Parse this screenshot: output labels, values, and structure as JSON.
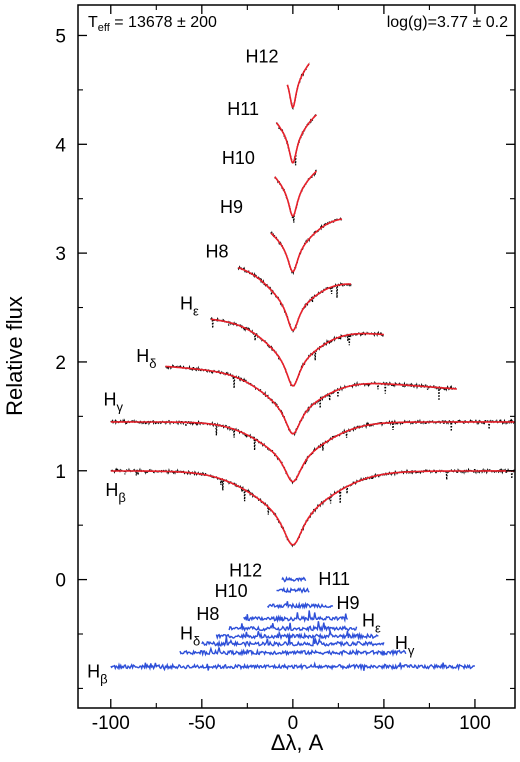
{
  "chart_data": {
    "type": "line",
    "xlabel": "Δλ, A",
    "ylabel": "Relative flux",
    "xlim": [
      -118,
      122
    ],
    "ylim": [
      -1.18,
      5.28
    ],
    "xticks": [
      -100,
      -50,
      0,
      50,
      100
    ],
    "yticks": [
      0,
      1,
      2,
      3,
      4,
      5
    ],
    "grid": false,
    "legend": "none",
    "annotations": {
      "teff": {
        "prefix": "T",
        "sub": "eff",
        "value": " = 13678  ± 200"
      },
      "logg": {
        "text": "log(g)=3.77 ± 0.2"
      }
    },
    "profiles": [
      {
        "name": "Hβ",
        "label_base": "H",
        "label_sub": "β",
        "continuum": 1.0,
        "depth": 0.68,
        "width": 7.0,
        "tilt": 0.0,
        "xmin": -100,
        "xmax": 122,
        "label_x": -103,
        "label_y": 0.77
      },
      {
        "name": "Hγ",
        "label_base": "H",
        "label_sub": "γ",
        "continuum": 1.45,
        "depth": 0.55,
        "width": 6.0,
        "tilt": 0.0,
        "xmin": -100,
        "xmax": 122,
        "label_x": -104,
        "label_y": 1.6
      },
      {
        "name": "Hδ",
        "label_base": "H",
        "label_sub": "δ",
        "continuum": 1.87,
        "depth": 0.53,
        "width": 5.3,
        "tilt": -0.0013,
        "xmin": -70,
        "xmax": 90,
        "label_x": -86,
        "label_y": 2.0
      },
      {
        "name": "Hε",
        "label_base": "H",
        "label_sub": "ε",
        "continuum": 2.33,
        "depth": 0.55,
        "width": 4.6,
        "tilt": -0.0015,
        "xmin": -45,
        "xmax": 50,
        "label_x": -62,
        "label_y": 2.48
      },
      {
        "name": "H8",
        "label_base": "H8",
        "label_sub": "",
        "continuum": 2.81,
        "depth": 0.52,
        "width": 4.0,
        "tilt": -0.0025,
        "xmin": -30,
        "xmax": 32,
        "label_x": -48,
        "label_y": 2.96
      },
      {
        "name": "H9",
        "label_base": "H9",
        "label_sub": "",
        "continuum": 3.33,
        "depth": 0.5,
        "width": 3.5,
        "tilt": 0.0,
        "xmin": -12,
        "xmax": 27,
        "label_x": -40,
        "label_y": 3.37
      },
      {
        "name": "H10",
        "label_base": "H10",
        "label_sub": "",
        "continuum": 3.86,
        "depth": 0.52,
        "width": 3.0,
        "tilt": 0.0,
        "xmin": -10,
        "xmax": 13,
        "label_x": -39,
        "label_y": 3.82
      },
      {
        "name": "H11",
        "label_base": "H11",
        "label_sub": "",
        "continuum": 4.35,
        "depth": 0.52,
        "width": 2.6,
        "tilt": 0.0,
        "xmin": -9,
        "xmax": 13,
        "label_x": -36,
        "label_y": 4.27
      },
      {
        "name": "H12",
        "label_base": "H12",
        "label_sub": "",
        "continuum": 4.86,
        "depth": 0.52,
        "width": 2.2,
        "tilt": 0.0,
        "xmin": -3,
        "xmax": 9,
        "label_x": -26,
        "label_y": 4.75
      }
    ],
    "residuals": [
      {
        "name": "Hβ",
        "label_base": "H",
        "label_sub": "β",
        "level": -0.8,
        "xmin": -100,
        "xmax": 100,
        "label_x": -113,
        "label_y": -0.9
      },
      {
        "name": "Hγ",
        "label_base": "H",
        "label_sub": "γ",
        "level": -0.67,
        "xmin": -62,
        "xmax": 62,
        "label_x": 56,
        "label_y": -0.64
      },
      {
        "name": "Hδ",
        "label_base": "H",
        "label_sub": "δ",
        "level": -0.59,
        "xmin": -50,
        "xmax": 50,
        "label_x": -62,
        "label_y": -0.55
      },
      {
        "name": "Hε",
        "label_base": "H",
        "label_sub": "ε",
        "level": -0.52,
        "xmin": -42,
        "xmax": 47,
        "label_x": 38,
        "label_y": -0.43
      },
      {
        "name": "H8",
        "label_base": "H8",
        "label_sub": "",
        "level": -0.45,
        "xmin": -35,
        "xmax": 35,
        "label_x": -53,
        "label_y": -0.37
      },
      {
        "name": "H9",
        "label_base": "H9",
        "label_sub": "",
        "level": -0.36,
        "xmin": -27,
        "xmax": 30,
        "label_x": 24,
        "label_y": -0.27
      },
      {
        "name": "H10",
        "label_base": "H10",
        "label_sub": "",
        "level": -0.24,
        "xmin": -14,
        "xmax": 22,
        "label_x": -43,
        "label_y": -0.16
      },
      {
        "name": "H11",
        "label_base": "H11",
        "label_sub": "",
        "level": -0.1,
        "xmin": -9,
        "xmax": 9,
        "label_x": 14,
        "label_y": -0.05
      },
      {
        "name": "H12",
        "label_base": "H12",
        "label_sub": "",
        "level": -0.0,
        "xmin": -6,
        "xmax": 7,
        "label_x": -35,
        "label_y": 0.03
      }
    ],
    "colors": {
      "model": "#e8202a",
      "observed": "#000000",
      "residual": "#2d4fd8",
      "axis": "#000000"
    }
  }
}
